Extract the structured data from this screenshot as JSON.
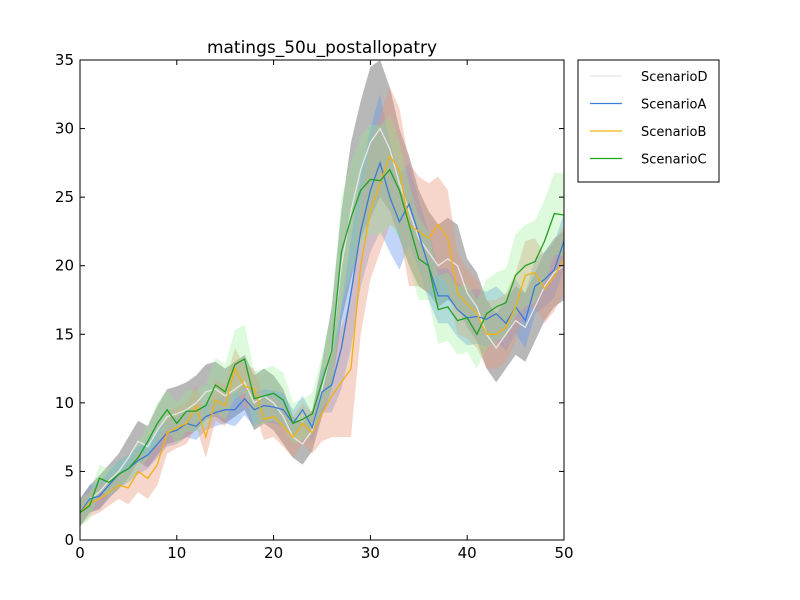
{
  "chart_data": {
    "type": "line_band",
    "title": "matings_50u_postallopatry",
    "x": [
      0,
      1,
      2,
      3,
      4,
      5,
      6,
      7,
      8,
      9,
      10,
      11,
      12,
      13,
      14,
      15,
      16,
      17,
      18,
      19,
      20,
      21,
      22,
      23,
      24,
      25,
      26,
      27,
      28,
      29,
      30,
      31,
      32,
      33,
      34,
      35,
      36,
      37,
      38,
      39,
      40,
      41,
      42,
      43,
      44,
      45,
      46,
      47,
      48,
      49,
      50
    ],
    "xlim": [
      0,
      50
    ],
    "xticks": [
      0,
      10,
      20,
      30,
      40,
      50
    ],
    "ylim": [
      0,
      35
    ],
    "yticks": [
      0,
      5,
      10,
      15,
      20,
      25,
      30,
      35
    ],
    "legend": "outside-upper-right",
    "series": [
      {
        "name": "ScenarioD",
        "color": "#e6e6e6",
        "band_color": "#888888",
        "values": [
          2,
          3,
          3.5,
          4.3,
          5,
          6,
          7.2,
          6.8,
          8,
          9,
          9.2,
          9.5,
          10,
          10.8,
          11,
          10.5,
          11,
          11.5,
          10,
          10.5,
          10,
          9,
          7.5,
          7,
          8,
          11,
          14,
          20,
          24,
          27,
          29,
          30,
          28.5,
          26,
          24,
          22,
          21,
          20,
          20.5,
          20,
          18,
          17,
          15,
          14,
          15,
          16,
          15.5,
          17,
          18.5,
          19.5,
          20
        ],
        "errors": [
          1,
          1,
          1.2,
          1.2,
          1.3,
          1.5,
          1.5,
          1.5,
          1.8,
          2,
          2,
          2,
          2,
          2,
          2,
          2,
          2,
          2,
          2,
          2,
          2,
          2,
          1.5,
          1.5,
          1.5,
          2,
          3,
          4,
          5,
          5,
          5.5,
          5,
          4.5,
          4,
          4,
          3.5,
          3,
          3,
          3,
          3,
          2.5,
          2.5,
          2.5,
          2.5,
          2.5,
          2.5,
          2.5,
          2.5,
          2.5,
          2.5,
          2.5
        ]
      },
      {
        "name": "ScenarioA",
        "color": "#3a7bd5",
        "band_color": "#6495ed",
        "values": [
          2,
          3,
          3.2,
          4,
          4.8,
          5.2,
          5.8,
          6.2,
          7,
          7.8,
          8,
          8.5,
          8.3,
          9,
          9.3,
          9.5,
          9.5,
          10.3,
          9.5,
          9.8,
          9.7,
          9.5,
          8.5,
          9.5,
          8.2,
          10.8,
          11.3,
          14,
          18,
          22.5,
          25.5,
          27.5,
          25,
          23.2,
          24.5,
          22.3,
          20,
          17.8,
          17.8,
          16.8,
          16.2,
          16.3,
          16.1,
          16.5,
          15.8,
          17,
          16,
          18.5,
          19,
          19.7,
          21.8
        ],
        "errors": [
          1,
          1,
          1,
          1,
          1,
          1,
          1,
          1,
          1,
          1,
          1,
          1,
          1,
          1,
          1,
          1,
          1.2,
          1.2,
          1.2,
          1.2,
          1.2,
          1.2,
          1,
          1,
          1,
          1.5,
          2,
          3,
          4,
          4,
          4.5,
          5,
          4,
          3.5,
          3,
          2.5,
          2.5,
          2,
          2,
          2,
          2,
          2,
          2,
          2,
          2,
          2,
          2,
          2,
          2,
          2,
          2
        ]
      },
      {
        "name": "ScenarioB",
        "color": "#f2b10f",
        "band_color": "#e9967a",
        "values": [
          2,
          2.7,
          3,
          3.5,
          4,
          3.8,
          5,
          4.5,
          5.5,
          7.8,
          8.2,
          8.5,
          9.8,
          7.5,
          10.2,
          9.8,
          12.5,
          11.2,
          11,
          8.8,
          9,
          8.3,
          7.5,
          8.5,
          7.8,
          9.2,
          10.5,
          11.5,
          12.5,
          20,
          24,
          26,
          28,
          27,
          23,
          22.5,
          22,
          23,
          22,
          18,
          17.2,
          16.5,
          15,
          15,
          15.5,
          17,
          19.3,
          19.5,
          18.3,
          19.2,
          20.5
        ],
        "errors": [
          1,
          1,
          1,
          1,
          1,
          1.2,
          1.5,
          1.5,
          1.5,
          1.5,
          1.5,
          1.5,
          1.5,
          1.5,
          1.5,
          1.5,
          1.5,
          1.5,
          1.5,
          1.5,
          1.5,
          1.5,
          1.5,
          1.5,
          1.5,
          2,
          3,
          4,
          5,
          5,
          5,
          5,
          5,
          4.5,
          4.5,
          4,
          4,
          3.5,
          3.5,
          3,
          2.5,
          2.5,
          2.5,
          2.5,
          2.5,
          2.5,
          2.5,
          2.5,
          2.5,
          2.5,
          2.5
        ]
      },
      {
        "name": "ScenarioC",
        "color": "#1fa21f",
        "band_color": "#90ee90",
        "values": [
          2,
          2.5,
          4.5,
          4.2,
          4.8,
          5.2,
          6,
          7.2,
          8.5,
          9.5,
          8.5,
          9.4,
          9.4,
          9.8,
          11.3,
          10.8,
          12.8,
          13.2,
          10.3,
          10.5,
          10.7,
          10.2,
          8.5,
          8.8,
          9.2,
          11.5,
          13.8,
          21,
          23.5,
          25.5,
          26.3,
          26.2,
          27,
          25.5,
          23,
          20.5,
          20,
          16.8,
          17,
          16,
          16.2,
          15,
          16.5,
          17,
          17.3,
          19.3,
          20,
          20.3,
          21.8,
          23.8,
          23.7
        ],
        "errors": [
          1,
          1,
          1,
          1,
          1,
          1,
          1,
          1.2,
          1.5,
          1.5,
          1.5,
          1.5,
          1.5,
          1.5,
          2,
          2,
          2.5,
          2.5,
          2,
          2,
          2,
          2,
          1.5,
          1.5,
          1.5,
          2,
          3,
          4,
          4,
          4,
          4,
          4,
          4,
          3.5,
          3,
          3,
          2.5,
          2.5,
          2.5,
          2.5,
          2.5,
          2.5,
          2.5,
          2.5,
          2.5,
          3,
          3,
          3,
          3,
          3,
          3
        ]
      }
    ]
  }
}
